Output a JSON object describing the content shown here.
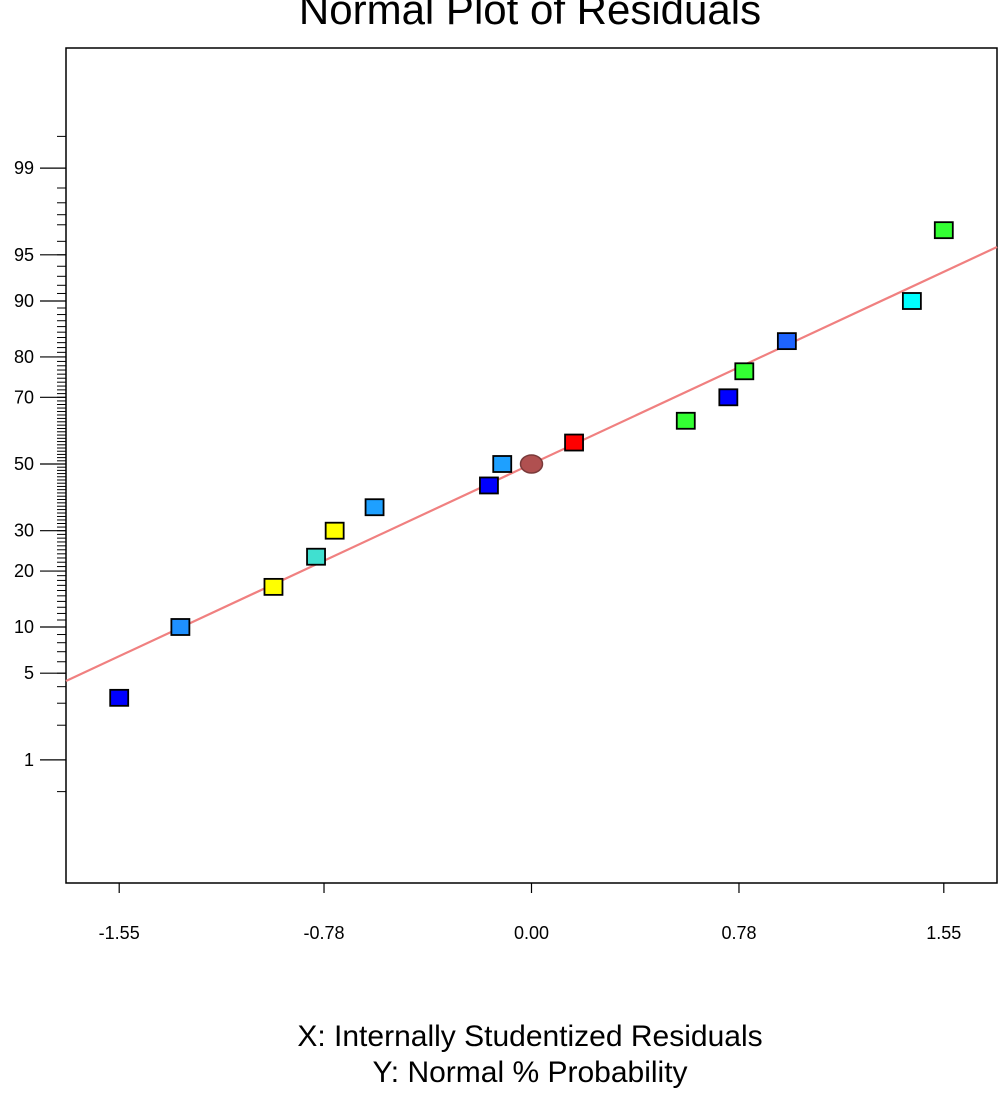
{
  "chart_data": {
    "type": "scatter",
    "title": "Normal Plot of Residuals",
    "xlabel": "X: Internally Studentized Residuals",
    "ylabel": "Y: Normal % Probability",
    "x_ticks": [
      "-1.55",
      "-0.78",
      "0.00",
      "0.78",
      "1.55"
    ],
    "y_ticks": [
      "1",
      "5",
      "10",
      "20",
      "30",
      "50",
      "70",
      "80",
      "90",
      "95",
      "99"
    ],
    "xlim": [
      -1.75,
      1.75
    ],
    "y_scale": "normal-probability",
    "grid": false,
    "fit_line": {
      "color": "#f08080",
      "points": [
        [
          -1.75,
          4.4
        ],
        [
          1.75,
          95.6
        ]
      ]
    },
    "points": [
      {
        "x": -1.55,
        "y": 3.3,
        "color": "#0000ff",
        "shape": "square"
      },
      {
        "x": -1.32,
        "y": 10.0,
        "color": "#1e90ff",
        "shape": "square"
      },
      {
        "x": -0.97,
        "y": 16.7,
        "color": "#ffff00",
        "shape": "square"
      },
      {
        "x": -0.81,
        "y": 23.3,
        "color": "#40e0d0",
        "shape": "square"
      },
      {
        "x": -0.74,
        "y": 30.0,
        "color": "#ffff00",
        "shape": "square"
      },
      {
        "x": -0.59,
        "y": 36.7,
        "color": "#1ea0ff",
        "shape": "square"
      },
      {
        "x": -0.16,
        "y": 43.3,
        "color": "#0000ff",
        "shape": "square"
      },
      {
        "x": -0.11,
        "y": 50.0,
        "color": "#1ea0ff",
        "shape": "square"
      },
      {
        "x": 0.0,
        "y": 50.0,
        "color": "#b05050",
        "shape": "circle"
      },
      {
        "x": 0.16,
        "y": 56.7,
        "color": "#ff0000",
        "shape": "square"
      },
      {
        "x": 0.58,
        "y": 63.3,
        "color": "#33ff33",
        "shape": "square"
      },
      {
        "x": 0.74,
        "y": 70.0,
        "color": "#0000ff",
        "shape": "square"
      },
      {
        "x": 0.8,
        "y": 76.7,
        "color": "#33ff33",
        "shape": "square"
      },
      {
        "x": 0.96,
        "y": 83.3,
        "color": "#1e64ff",
        "shape": "square"
      },
      {
        "x": 1.43,
        "y": 90.0,
        "color": "#00ffff",
        "shape": "square"
      },
      {
        "x": 1.55,
        "y": 96.7,
        "color": "#33ff33",
        "shape": "square"
      }
    ]
  }
}
